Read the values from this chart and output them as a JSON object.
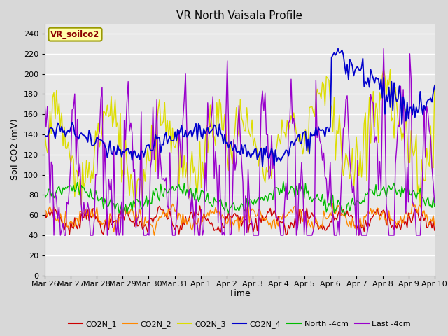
{
  "title": "VR North Vaisala Profile",
  "xlabel": "Time",
  "ylabel": "Soil CO2 (mV)",
  "annotation": "VR_soilco2",
  "ylim": [
    0,
    250
  ],
  "yticks": [
    0,
    20,
    40,
    60,
    80,
    100,
    120,
    140,
    160,
    180,
    200,
    220,
    240
  ],
  "xtick_labels": [
    "Mar 26",
    "Mar 27",
    "Mar 28",
    "Mar 29",
    "Mar 30",
    "Mar 31",
    "Apr 1",
    "Apr 2",
    "Apr 3",
    "Apr 4",
    "Apr 5",
    "Apr 6",
    "Apr 7",
    "Apr 8",
    "Apr 9",
    "Apr 10"
  ],
  "colors": {
    "CO2N_1": "#cc0000",
    "CO2N_2": "#ff8800",
    "CO2N_3": "#dddd00",
    "CO2N_4": "#0000cc",
    "North_4cm": "#00bb00",
    "East_4cm": "#9900cc"
  },
  "fig_bg": "#d8d8d8",
  "plot_bg": "#e8e8e8",
  "grid_color": "#ffffff"
}
